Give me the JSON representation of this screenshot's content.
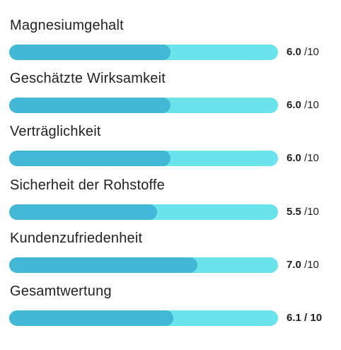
{
  "ratings": [
    {
      "label": "Magnesiumgehalt",
      "value": "6.0",
      "max": "10",
      "fraction": 0.6
    },
    {
      "label": "Geschätzte Wirksamkeit",
      "value": "6.0",
      "max": "10",
      "fraction": 0.6
    },
    {
      "label": "Verträglichkeit",
      "value": "6.0",
      "max": "10",
      "fraction": 0.6
    },
    {
      "label": "Sicherheit der Rohstoffe",
      "value": "5.5",
      "max": "10",
      "fraction": 0.55
    },
    {
      "label": "Kundenzufriedenheit",
      "value": "7.0",
      "max": "10",
      "fraction": 0.7
    },
    {
      "label": "Gesamtwertung",
      "value": "6.1",
      "max": "10",
      "fraction": 0.61
    }
  ],
  "score_separator": "/",
  "colors": {
    "bar_track": "#6ae3ea",
    "bar_fill": "#42b7d6",
    "text": "#222222"
  }
}
